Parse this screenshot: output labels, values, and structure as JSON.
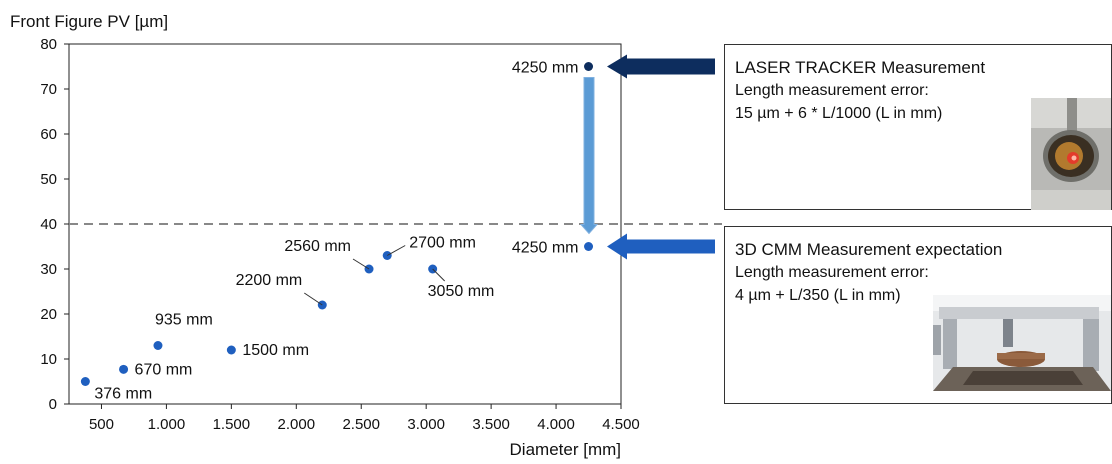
{
  "chart_data": {
    "type": "scatter",
    "ylabel": "Front Figure PV [µm]",
    "xlabel": "Diameter [mm]",
    "xlim": [
      250,
      4500
    ],
    "ylim": [
      0,
      80
    ],
    "x_ticks": [
      500,
      1000,
      1500,
      2000,
      2500,
      3000,
      3500,
      4000,
      4500
    ],
    "x_tick_labels": [
      "500",
      "1.000",
      "1.500",
      "2.000",
      "2.500",
      "3.000",
      "3.500",
      "4.000",
      "4.500"
    ],
    "y_ticks": [
      0,
      10,
      20,
      30,
      40,
      50,
      60,
      70,
      80
    ],
    "y_tick_labels": [
      "0",
      "10",
      "20",
      "30",
      "40",
      "50",
      "60",
      "70",
      "80"
    ],
    "reference_line_y": 40,
    "grid": false,
    "points": [
      {
        "x": 376,
        "y": 5,
        "label": "376 mm"
      },
      {
        "x": 670,
        "y": 7.7,
        "label": "670 mm"
      },
      {
        "x": 935,
        "y": 13,
        "label": "935 mm"
      },
      {
        "x": 1500,
        "y": 12,
        "label": "1500 mm"
      },
      {
        "x": 2200,
        "y": 22,
        "label": "2200 mm"
      },
      {
        "x": 2560,
        "y": 30,
        "label": "2560 mm"
      },
      {
        "x": 2700,
        "y": 33,
        "label": "2700 mm"
      },
      {
        "x": 3050,
        "y": 30,
        "label": "3050 mm"
      },
      {
        "x": 4250,
        "y": 35,
        "label": "4250 mm"
      },
      {
        "x": 4250,
        "y": 75,
        "label": "4250 mm"
      }
    ],
    "colors": {
      "point": "#1f5fbf",
      "laser_point": "#0d2d5e",
      "laser_arrow": "#0d2d5e",
      "cmm_arrow": "#1f5fbf",
      "transition_arrow": "#5b9bd5",
      "reference_line": "#888888"
    }
  },
  "panels": [
    {
      "title": "LASER TRACKER Measurement",
      "line2": "Length measurement error:",
      "line3": "15 µm + 6 * L/1000 (L in mm)"
    },
    {
      "title": "3D CMM Measurement expectation",
      "line2": "Length measurement error:",
      "line3": "4 µm + L/350 (L in mm)"
    }
  ]
}
